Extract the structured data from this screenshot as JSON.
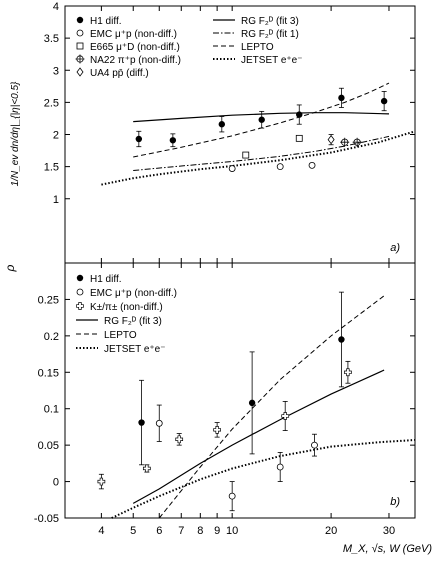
{
  "x_axis_label": "M_X, √s, W (GeV)",
  "chart_data": [
    {
      "id": "top",
      "type": "scatter",
      "ylabel": "1/N_ev dn/dη|_{|η|<0.5}",
      "panel_tag": "a)",
      "ylim": [
        0,
        4
      ],
      "yticks": [
        1,
        1.5,
        2,
        2.5,
        3,
        3.5,
        4
      ],
      "xlim": [
        3.1,
        36
      ],
      "xscale": "log",
      "legend_placement": "top",
      "legend": [
        {
          "label": "H1 diff.",
          "symbol": "dot"
        },
        {
          "label": "EMC μ⁺p (non-diff.)",
          "symbol": "open-circle"
        },
        {
          "label": "E665 μ⁺D (non-diff.)",
          "symbol": "open-square"
        },
        {
          "label": "NA22 π⁺p (non-diff.)",
          "symbol": "crossed-circle"
        },
        {
          "label": "UA4 pp̄ (diff.)",
          "symbol": "open-diamond"
        },
        {
          "label": "RG F₂ᴰ (fit 3)",
          "symbol": "line-solid"
        },
        {
          "label": "RG F₂ᴰ (fit 1)",
          "symbol": "line-dashdot"
        },
        {
          "label": "LEPTO",
          "symbol": "line-dashed"
        },
        {
          "label": "JETSET e⁺e⁻",
          "symbol": "line-dotted"
        }
      ],
      "series": [
        {
          "name": "H1 diff.",
          "marker": "dot",
          "points": [
            {
              "x": 5.2,
              "y": 1.93,
              "err": 0.12
            },
            {
              "x": 6.6,
              "y": 1.91,
              "err": 0.1
            },
            {
              "x": 9.3,
              "y": 2.16,
              "err": 0.12
            },
            {
              "x": 12.3,
              "y": 2.23,
              "err": 0.13
            },
            {
              "x": 16.0,
              "y": 2.31,
              "err": 0.15
            },
            {
              "x": 21.5,
              "y": 2.57,
              "err": 0.15
            },
            {
              "x": 29.0,
              "y": 2.52,
              "err": 0.15
            }
          ]
        },
        {
          "name": "EMC μ⁺p (non-diff.)",
          "marker": "open-circle",
          "points": [
            {
              "x": 10.0,
              "y": 1.47
            },
            {
              "x": 14.0,
              "y": 1.5
            },
            {
              "x": 17.5,
              "y": 1.52
            }
          ]
        },
        {
          "name": "E665 μ⁺D (non-diff.)",
          "marker": "open-square",
          "points": [
            {
              "x": 11.0,
              "y": 1.68
            },
            {
              "x": 16.0,
              "y": 1.94
            }
          ]
        },
        {
          "name": "NA22 π⁺p (non-diff.)",
          "marker": "crossed-circle",
          "points": [
            {
              "x": 22.0,
              "y": 1.88
            },
            {
              "x": 24.0,
              "y": 1.88
            }
          ]
        },
        {
          "name": "UA4 pp̄ (diff.)",
          "marker": "open-diamond",
          "points": [
            {
              "x": 20.0,
              "y": 1.92,
              "err": 0.08
            }
          ]
        }
      ],
      "curves": [
        {
          "name": "RG F₂ᴰ (fit 3)",
          "style": "solid",
          "x": [
            5.0,
            7.0,
            10.0,
            14.0,
            18.0,
            22.0,
            26.0,
            30.0
          ],
          "y": [
            2.2,
            2.25,
            2.3,
            2.33,
            2.34,
            2.34,
            2.33,
            2.32
          ]
        },
        {
          "name": "RG F₂ᴰ (fit 1)",
          "style": "dashdot",
          "x": [
            5.0,
            7.0,
            10.0,
            14.0,
            18.0,
            22.0,
            26.0,
            30.0
          ],
          "y": [
            1.44,
            1.51,
            1.58,
            1.66,
            1.74,
            1.82,
            1.9,
            1.97
          ]
        },
        {
          "name": "LEPTO",
          "style": "dashed",
          "x": [
            5.0,
            7.0,
            10.0,
            14.0,
            18.0,
            22.0,
            26.0,
            30.0
          ],
          "y": [
            1.65,
            1.8,
            1.98,
            2.18,
            2.35,
            2.5,
            2.65,
            2.8
          ]
        },
        {
          "name": "JETSET e⁺e⁻",
          "style": "dotted",
          "x": [
            4.0,
            5.0,
            6.0,
            8.0,
            10.0,
            14.0,
            20.0,
            28.0,
            36.0
          ],
          "y": [
            1.22,
            1.32,
            1.38,
            1.46,
            1.51,
            1.6,
            1.72,
            1.88,
            2.05
          ]
        }
      ]
    },
    {
      "id": "bottom",
      "type": "scatter",
      "ylabel": "ρ",
      "panel_tag": "b)",
      "ylim": [
        -0.05,
        0.3
      ],
      "yticks": [
        -0.05,
        0,
        0.05,
        0.1,
        0.15,
        0.2,
        0.25
      ],
      "yticklabels": [
        "-0.05",
        "0",
        "0.05",
        "0.1",
        "0.15",
        "0.2",
        "0.25"
      ],
      "xlim": [
        3.1,
        36
      ],
      "xscale": "log",
      "xticks": [
        4,
        5,
        6,
        7,
        8,
        9,
        10,
        20,
        30
      ],
      "legend_placement": "top-left",
      "legend": [
        {
          "label": "H1 diff.",
          "symbol": "dot"
        },
        {
          "label": "EMC μ⁺p (non-diff.)",
          "symbol": "open-circle"
        },
        {
          "label": "K±/π± (non-diff.)",
          "symbol": "open-cross"
        },
        {
          "label": "RG F₂ᴰ (fit 3)",
          "symbol": "line-solid"
        },
        {
          "label": "LEPTO",
          "symbol": "line-dashed"
        },
        {
          "label": "JETSET e⁺e⁻",
          "symbol": "line-dotted"
        }
      ],
      "series": [
        {
          "name": "H1 diff.",
          "marker": "dot",
          "points": [
            {
              "x": 5.3,
              "y": 0.081,
              "err": 0.058
            },
            {
              "x": 11.5,
              "y": 0.108,
              "err": 0.07
            },
            {
              "x": 21.5,
              "y": 0.195,
              "err": 0.065
            }
          ]
        },
        {
          "name": "EMC μ⁺p (non-diff.)",
          "marker": "open-circle",
          "points": [
            {
              "x": 6.0,
              "y": 0.08,
              "err": 0.025
            },
            {
              "x": 10.0,
              "y": -0.02,
              "err": 0.02
            },
            {
              "x": 14.0,
              "y": 0.02,
              "err": 0.02
            },
            {
              "x": 17.8,
              "y": 0.05,
              "err": 0.015
            }
          ]
        },
        {
          "name": "K±/π± (non-diff.)",
          "marker": "open-cross",
          "points": [
            {
              "x": 4.0,
              "y": 0.0,
              "err": 0.01
            },
            {
              "x": 5.5,
              "y": 0.018,
              "err": 0.005
            },
            {
              "x": 6.9,
              "y": 0.058,
              "err": 0.008
            },
            {
              "x": 9.0,
              "y": 0.071,
              "err": 0.01
            },
            {
              "x": 14.5,
              "y": 0.09,
              "err": 0.02
            },
            {
              "x": 22.5,
              "y": 0.15,
              "err": 0.015
            }
          ]
        }
      ],
      "curves": [
        {
          "name": "RG F₂ᴰ (fit 3)",
          "style": "solid",
          "x": [
            5.0,
            6.0,
            8.0,
            10.0,
            14.0,
            20.0,
            29.0
          ],
          "y": [
            -0.03,
            -0.01,
            0.025,
            0.05,
            0.085,
            0.12,
            0.153
          ]
        },
        {
          "name": "LEPTO",
          "style": "dashed",
          "x": [
            6.0,
            8.0,
            10.0,
            14.0,
            20.0,
            29.0
          ],
          "y": [
            -0.05,
            0.02,
            0.072,
            0.14,
            0.2,
            0.255
          ]
        },
        {
          "name": "JETSET e⁺e⁻",
          "style": "dotted",
          "x": [
            4.3,
            5.0,
            6.0,
            8.0,
            10.0,
            14.0,
            20.0,
            28.0,
            36.0
          ],
          "y": [
            -0.05,
            -0.036,
            -0.02,
            0.003,
            0.018,
            0.035,
            0.048,
            0.054,
            0.057
          ]
        }
      ]
    }
  ]
}
